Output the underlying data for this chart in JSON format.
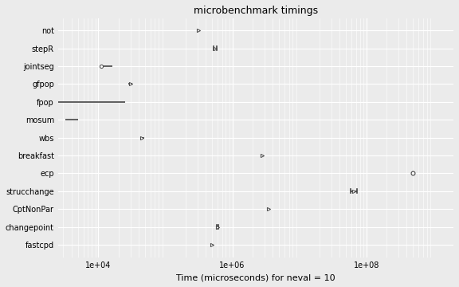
{
  "title": "microbenchmark timings",
  "xlabel": "Time (microseconds) for neval = 10",
  "background_color": "#EBEBEB",
  "grid_color": "#FFFFFF",
  "algorithms": [
    "not",
    "stepR",
    "jointseg",
    "gfpop",
    "fpop",
    "mosum",
    "wbs",
    "breakfast",
    "ecp",
    "strucchange",
    "CptNonPar",
    "changepoint",
    "fastcpd"
  ],
  "medians": [
    310000,
    560000,
    12000,
    30000,
    6000,
    4000,
    45000,
    2800000,
    500000000,
    65000000,
    3500000,
    600000,
    500000
  ],
  "q1": [
    305000,
    530000,
    11000,
    28000,
    2500,
    3200,
    42000,
    2700000,
    490000000,
    58000000,
    3400000,
    590000,
    490000
  ],
  "q3": [
    315000,
    590000,
    16000,
    32000,
    25000,
    5000,
    48000,
    2900000,
    510000000,
    73000000,
    3600000,
    610000,
    510000
  ],
  "markers": [
    "triangle",
    "triangle_with_bars",
    "circle_line",
    "triangle",
    "line_only",
    "line_only",
    "triangle",
    "triangle",
    "circle",
    "triangle_with_bars",
    "triangle",
    "triangle_with_bars",
    "triangle"
  ],
  "xlim_log": [
    2500,
    2000000000
  ],
  "xticks": [
    10000,
    1000000,
    100000000
  ],
  "xtick_labels": [
    "1e+04",
    "1e+06",
    "1e+08"
  ],
  "title_fontsize": 9,
  "label_fontsize": 8,
  "tick_fontsize": 7
}
